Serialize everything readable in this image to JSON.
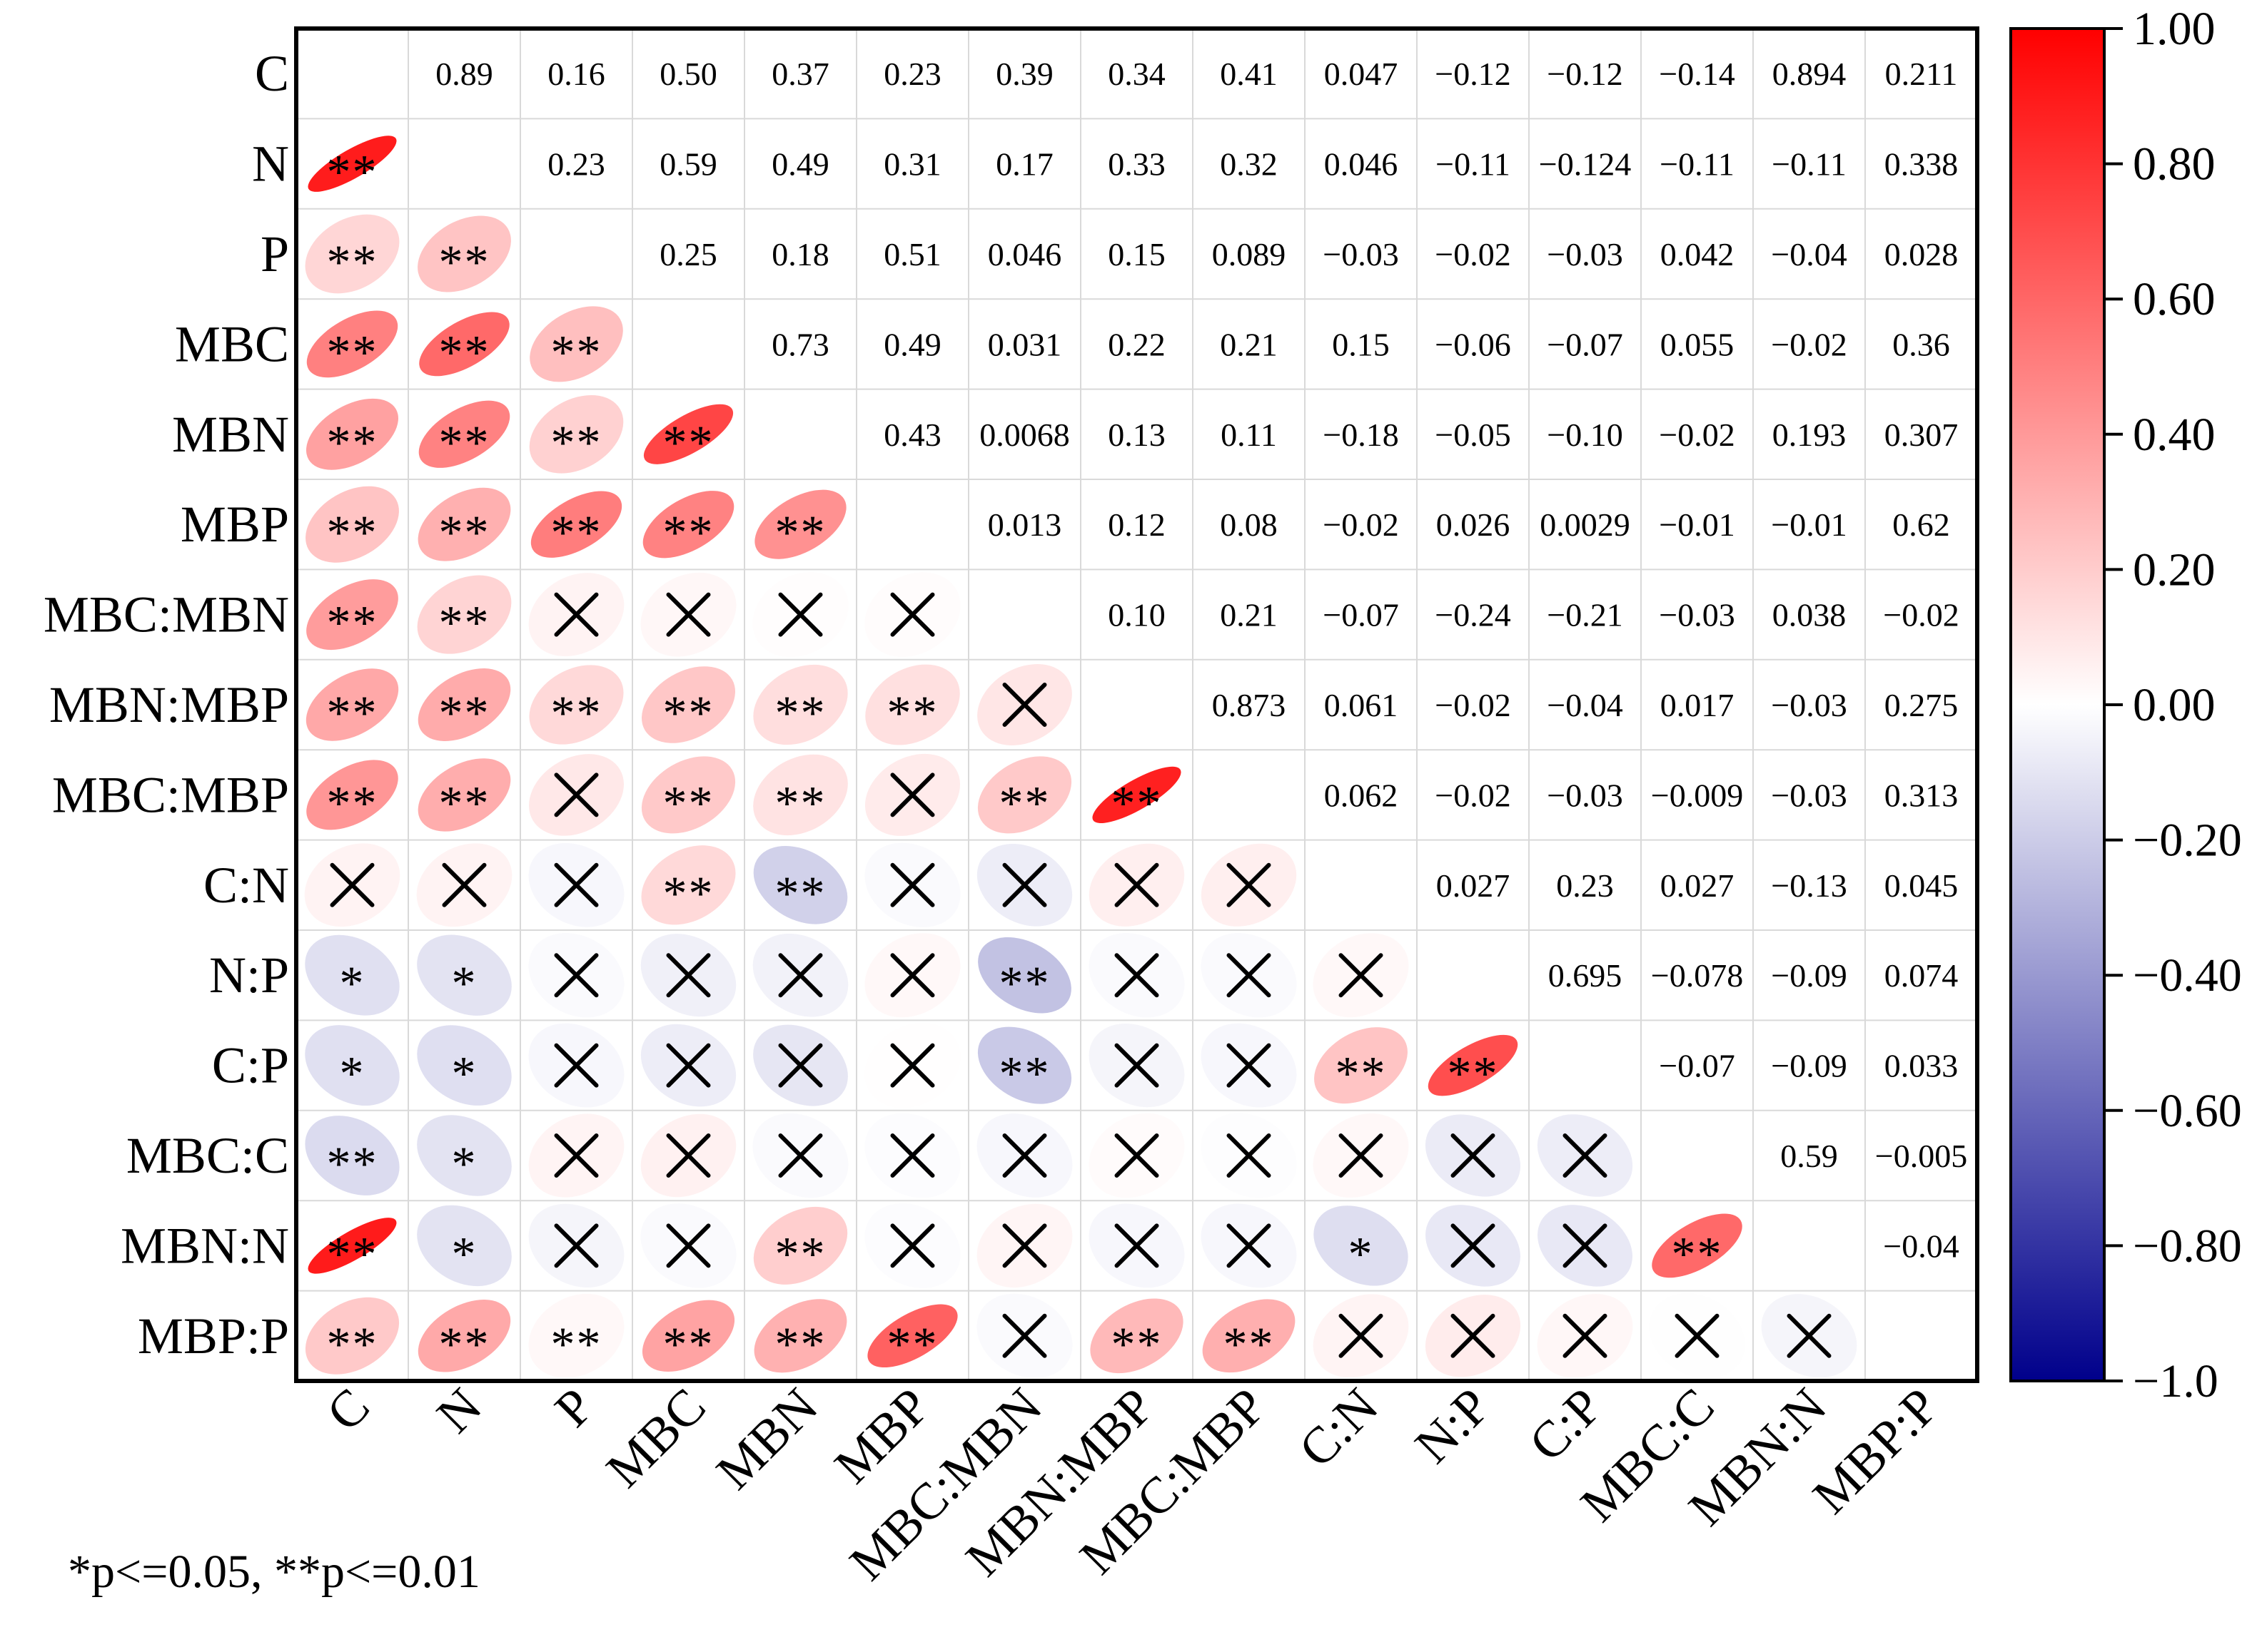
{
  "chart_data": {
    "type": "heatmap",
    "variant": "correlation-matrix",
    "variables": [
      "C",
      "N",
      "P",
      "MBC",
      "MBN",
      "MBP",
      "MBC:MBN",
      "MBN:MBP",
      "MBC:MBP",
      "C:N",
      "N:P",
      "C:P",
      "MBC:C",
      "MBN:N",
      "MBP:P"
    ],
    "upper_labels": [
      [
        "",
        "0.89",
        "0.16",
        "0.50",
        "0.37",
        "0.23",
        "0.39",
        "0.34",
        "0.41",
        "0.047",
        "−0.12",
        "−0.12",
        "−0.14",
        "0.894",
        "0.211"
      ],
      [
        "",
        "",
        "0.23",
        "0.59",
        "0.49",
        "0.31",
        "0.17",
        "0.33",
        "0.32",
        "0.046",
        "−0.11",
        "−0.124",
        "−0.11",
        "−0.11",
        "0.338"
      ],
      [
        "",
        "",
        "",
        "0.25",
        "0.18",
        "0.51",
        "0.046",
        "0.15",
        "0.089",
        "−0.03",
        "−0.02",
        "−0.03",
        "0.042",
        "−0.04",
        "0.028"
      ],
      [
        "",
        "",
        "",
        "",
        "0.73",
        "0.49",
        "0.031",
        "0.22",
        "0.21",
        "0.15",
        "−0.06",
        "−0.07",
        "0.055",
        "−0.02",
        "0.36"
      ],
      [
        "",
        "",
        "",
        "",
        "",
        "0.43",
        "0.0068",
        "0.13",
        "0.11",
        "−0.18",
        "−0.05",
        "−0.10",
        "−0.02",
        "0.193",
        "0.307"
      ],
      [
        "",
        "",
        "",
        "",
        "",
        "",
        "0.013",
        "0.12",
        "0.08",
        "−0.02",
        "0.026",
        "0.0029",
        "−0.01",
        "−0.01",
        "0.62"
      ],
      [
        "",
        "",
        "",
        "",
        "",
        "",
        "",
        "0.10",
        "0.21",
        "−0.07",
        "−0.24",
        "−0.21",
        "−0.03",
        "0.038",
        "−0.02"
      ],
      [
        "",
        "",
        "",
        "",
        "",
        "",
        "",
        "",
        "0.873",
        "0.061",
        "−0.02",
        "−0.04",
        "0.017",
        "−0.03",
        "0.275"
      ],
      [
        "",
        "",
        "",
        "",
        "",
        "",
        "",
        "",
        "",
        "0.062",
        "−0.02",
        "−0.03",
        "−0.009",
        "−0.03",
        "0.313"
      ],
      [
        "",
        "",
        "",
        "",
        "",
        "",
        "",
        "",
        "",
        "",
        "0.027",
        "0.23",
        "0.027",
        "−0.13",
        "0.045"
      ],
      [
        "",
        "",
        "",
        "",
        "",
        "",
        "",
        "",
        "",
        "",
        "",
        "0.695",
        "−0.078",
        "−0.09",
        "0.074"
      ],
      [
        "",
        "",
        "",
        "",
        "",
        "",
        "",
        "",
        "",
        "",
        "",
        "",
        "−0.07",
        "−0.09",
        "0.033"
      ],
      [
        "",
        "",
        "",
        "",
        "",
        "",
        "",
        "",
        "",
        "",
        "",
        "",
        "",
        "0.59",
        "−0.005"
      ],
      [
        "",
        "",
        "",
        "",
        "",
        "",
        "",
        "",
        "",
        "",
        "",
        "",
        "",
        "",
        "−0.04"
      ],
      [
        "",
        "",
        "",
        "",
        "",
        "",
        "",
        "",
        "",
        "",
        "",
        "",
        "",
        "",
        ""
      ]
    ],
    "lower_significance": [
      [],
      [
        "**"
      ],
      [
        "**",
        "**"
      ],
      [
        "**",
        "**",
        "**"
      ],
      [
        "**",
        "**",
        "**",
        "**"
      ],
      [
        "**",
        "**",
        "**",
        "**",
        "**"
      ],
      [
        "**",
        "**",
        "x",
        "x",
        "x",
        "x"
      ],
      [
        "**",
        "**",
        "**",
        "**",
        "**",
        "**",
        "x"
      ],
      [
        "**",
        "**",
        "x",
        "**",
        "**",
        "x",
        "**",
        "**"
      ],
      [
        "x",
        "x",
        "x",
        "**",
        "**",
        "x",
        "x",
        "x",
        "x"
      ],
      [
        "*",
        "*",
        "x",
        "x",
        "x",
        "x",
        "**",
        "x",
        "x",
        "x"
      ],
      [
        "*",
        "*",
        "x",
        "x",
        "x",
        "x",
        "**",
        "x",
        "x",
        "**",
        "**"
      ],
      [
        "**",
        "*",
        "x",
        "x",
        "x",
        "x",
        "x",
        "x",
        "x",
        "x",
        "x",
        "x"
      ],
      [
        "**",
        "*",
        "x",
        "x",
        "**",
        "x",
        "x",
        "x",
        "x",
        "*",
        "x",
        "x",
        "**"
      ],
      [
        "**",
        "**",
        "**",
        "**",
        "**",
        "**",
        "x",
        "**",
        "**",
        "x",
        "x",
        "x",
        "x",
        "x"
      ]
    ],
    "colorbar": {
      "min": -1.0,
      "max": 1.0,
      "ticks": [
        1.0,
        0.8,
        0.6,
        0.4,
        0.2,
        0.0,
        -0.2,
        -0.4,
        -0.6,
        -0.8,
        -1.0
      ],
      "tick_labels": [
        "1.00",
        "0.80",
        "0.60",
        "0.40",
        "0.20",
        "0.00",
        "−0.20",
        "−0.40",
        "−0.60",
        "−0.80",
        "−1.0"
      ],
      "colors": {
        "negative": "#00008b",
        "zero": "#ffffff",
        "positive": "#ff0000"
      }
    },
    "footnote": "*p<=0.05, **p<=0.01",
    "grid": true
  }
}
